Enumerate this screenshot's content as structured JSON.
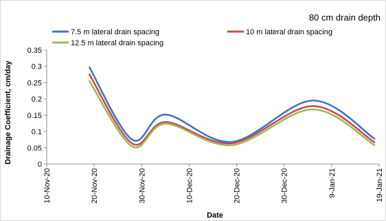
{
  "chart_data": {
    "type": "line",
    "title": "80 cm drain depth",
    "xlabel": "Date",
    "ylabel": "Drainage Coefficient, cm/day",
    "x_ticks": [
      "10-Nov-20",
      "20-Nov-20",
      "30-Nov-20",
      "10-Dec-20",
      "20-Dec-20",
      "30-Dec-20",
      "9-Jan-21",
      "19-Jan-21"
    ],
    "y_ticks": [
      "0",
      "0.05",
      "0.1",
      "0.15",
      "0.2",
      "0.25",
      "0.3",
      "0.35"
    ],
    "xlim": [
      "10-Nov-20",
      "19-Jan-21"
    ],
    "ylim": [
      0,
      0.35
    ],
    "grid": false,
    "legend_position": "top",
    "x": [
      "19-Nov-20",
      "28-Nov-20",
      "5-Dec-20",
      "19-Dec-20",
      "5-Jan-21",
      "18-Jan-21"
    ],
    "series": [
      {
        "name": "7.5 m lateral drain spacing",
        "color": "#4472C4",
        "values": [
          0.297,
          0.075,
          0.152,
          0.068,
          0.195,
          0.078
        ]
      },
      {
        "name": "10 m lateral drain spacing",
        "color": "#C0504D",
        "values": [
          0.275,
          0.063,
          0.129,
          0.064,
          0.178,
          0.067
        ]
      },
      {
        "name": "12.5 m lateral drain spacing",
        "color": "#9BBB59",
        "values": [
          0.255,
          0.054,
          0.124,
          0.058,
          0.168,
          0.058
        ]
      }
    ]
  }
}
